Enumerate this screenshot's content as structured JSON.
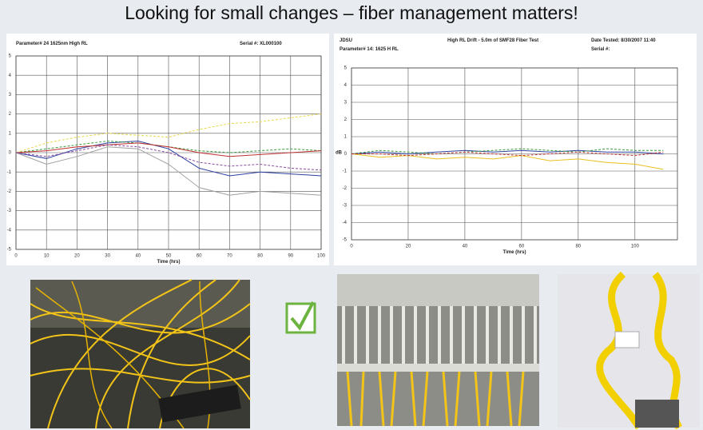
{
  "title": "Looking for small changes – fiber management matters!",
  "charts": [
    {
      "type": "line",
      "header_left": "Parameter# 24 1625nm High RL",
      "header_right": "Serial #: XL000100",
      "xlabel": "Time (hrs)",
      "xlim": [
        0,
        100
      ],
      "xticks": [
        0,
        10,
        20,
        30,
        40,
        50,
        60,
        70,
        80,
        90,
        100
      ],
      "ylim": [
        -5,
        5
      ],
      "yticks": [
        -5,
        -4,
        -3,
        -2,
        -1,
        0,
        1,
        2,
        3,
        4,
        5
      ],
      "grid": true,
      "x": [
        0,
        10,
        20,
        30,
        40,
        50,
        60,
        70,
        80,
        90,
        100
      ],
      "series": [
        {
          "color": "#2b3fa0",
          "values": [
            0,
            -0.3,
            0.2,
            0.5,
            0.6,
            0.2,
            -0.8,
            -1.2,
            -1.0,
            -1.1,
            -1.2
          ]
        },
        {
          "color": "#3a9a3a",
          "values": [
            0,
            0.2,
            0.4,
            0.6,
            0.5,
            0.3,
            0.1,
            0,
            0.1,
            0.2,
            0.1
          ]
        },
        {
          "color": "#a0a0a0",
          "values": [
            0,
            -0.6,
            -0.2,
            0.3,
            0.2,
            -0.6,
            -1.8,
            -2.2,
            -2.0,
            -2.1,
            -2.2
          ]
        },
        {
          "color": "#e8d84a",
          "values": [
            0,
            0.5,
            0.8,
            1.0,
            0.9,
            0.8,
            1.2,
            1.5,
            1.6,
            1.8,
            2.0
          ]
        },
        {
          "color": "#c03030",
          "values": [
            0,
            0.1,
            0.3,
            0.4,
            0.5,
            0.3,
            0,
            -0.2,
            -0.1,
            0,
            0.1
          ]
        },
        {
          "color": "#8a4aa0",
          "values": [
            0,
            -0.2,
            0.1,
            0.4,
            0.3,
            0,
            -0.5,
            -0.7,
            -0.6,
            -0.8,
            -0.9
          ]
        }
      ]
    },
    {
      "type": "line",
      "brand": "JDSU",
      "chart_title": "High RL Drift - 5.0m of SMF28 Fiber Test",
      "date": "Date Tested: 8/30/2007 11:40",
      "header_left": "Parameter# 14: 1625 H RL",
      "header_right": "Serial #:",
      "xlabel": "Time (hrs)",
      "ylabel": "dB",
      "xlim": [
        0,
        115
      ],
      "xticks": [
        0,
        20,
        40,
        60,
        80,
        100
      ],
      "ylim": [
        -5,
        5
      ],
      "yticks": [
        -5,
        -4,
        -3,
        -2,
        -1,
        0,
        1,
        2,
        3,
        4,
        5
      ],
      "grid": true,
      "x": [
        0,
        10,
        20,
        30,
        40,
        50,
        60,
        70,
        80,
        90,
        100,
        110
      ],
      "series": [
        {
          "color": "#2b3fa0",
          "values": [
            0,
            0.1,
            0,
            0.1,
            0.2,
            0.1,
            0.2,
            0.1,
            0.2,
            0.1,
            0.1,
            0
          ]
        },
        {
          "color": "#3a9a3a",
          "values": [
            0,
            0.2,
            0.1,
            0,
            0.1,
            0.2,
            0.3,
            0.2,
            0.1,
            0.3,
            0.2,
            0.2
          ]
        },
        {
          "color": "#e8c020",
          "values": [
            0,
            -0.2,
            -0.1,
            -0.3,
            -0.2,
            -0.3,
            -0.1,
            -0.4,
            -0.3,
            -0.5,
            -0.6,
            -0.9
          ]
        },
        {
          "color": "#c03030",
          "values": [
            0,
            0,
            -0.1,
            0,
            0.1,
            0,
            -0.1,
            0,
            0.1,
            0,
            -0.1,
            0.1
          ]
        }
      ]
    }
  ]
}
